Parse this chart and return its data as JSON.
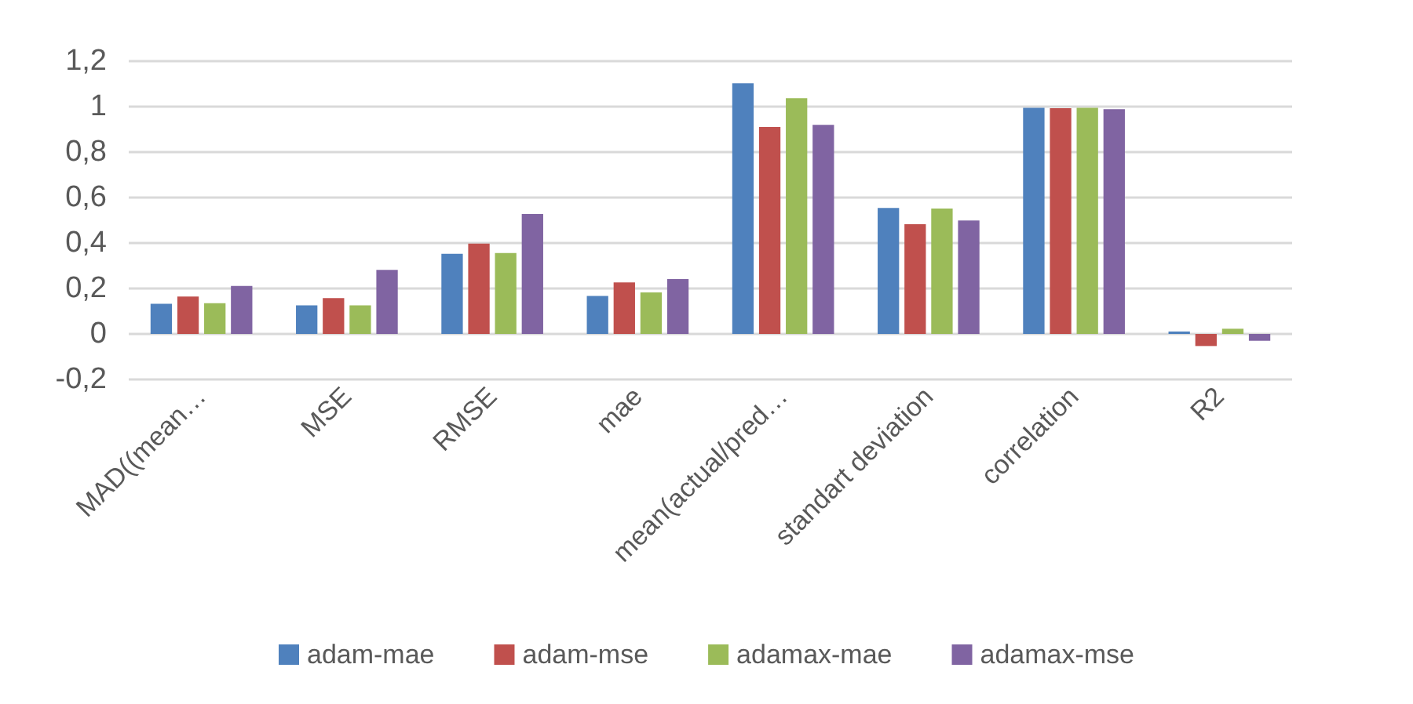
{
  "chart_data": {
    "type": "bar",
    "categories": [
      "MAD((mean…",
      "MSE",
      "RMSE",
      "mae",
      "mean(actual/pred…",
      "standart deviation",
      "correlation",
      "R2"
    ],
    "series": [
      {
        "name": "adam-mae",
        "color": "#4f81bd",
        "values": [
          0.133,
          0.126,
          0.353,
          0.167,
          1.103,
          0.554,
          0.995,
          0.011
        ]
      },
      {
        "name": "adam-mse",
        "color": "#c0504d",
        "values": [
          0.165,
          0.158,
          0.397,
          0.227,
          0.91,
          0.483,
          0.993,
          -0.053
        ]
      },
      {
        "name": "adamax-mae",
        "color": "#9bbb59",
        "values": [
          0.135,
          0.126,
          0.356,
          0.183,
          1.037,
          0.552,
          0.995,
          0.023
        ]
      },
      {
        "name": "adamax-mse",
        "color": "#8064a2",
        "values": [
          0.211,
          0.282,
          0.528,
          0.241,
          0.92,
          0.499,
          0.989,
          -0.03
        ]
      }
    ],
    "ylim": [
      -0.2,
      1.2
    ],
    "yticks": [
      {
        "value": -0.2,
        "label": "-0,2"
      },
      0,
      {
        "value": 0.2,
        "label": "0,2"
      },
      {
        "value": 0.4,
        "label": "0,4"
      },
      {
        "value": 0.6,
        "label": "0,6"
      },
      {
        "value": 0.8,
        "label": "0,8"
      },
      1,
      {
        "value": 1.2,
        "label": "1,2"
      }
    ],
    "grid": "y",
    "legend": "bottom"
  }
}
